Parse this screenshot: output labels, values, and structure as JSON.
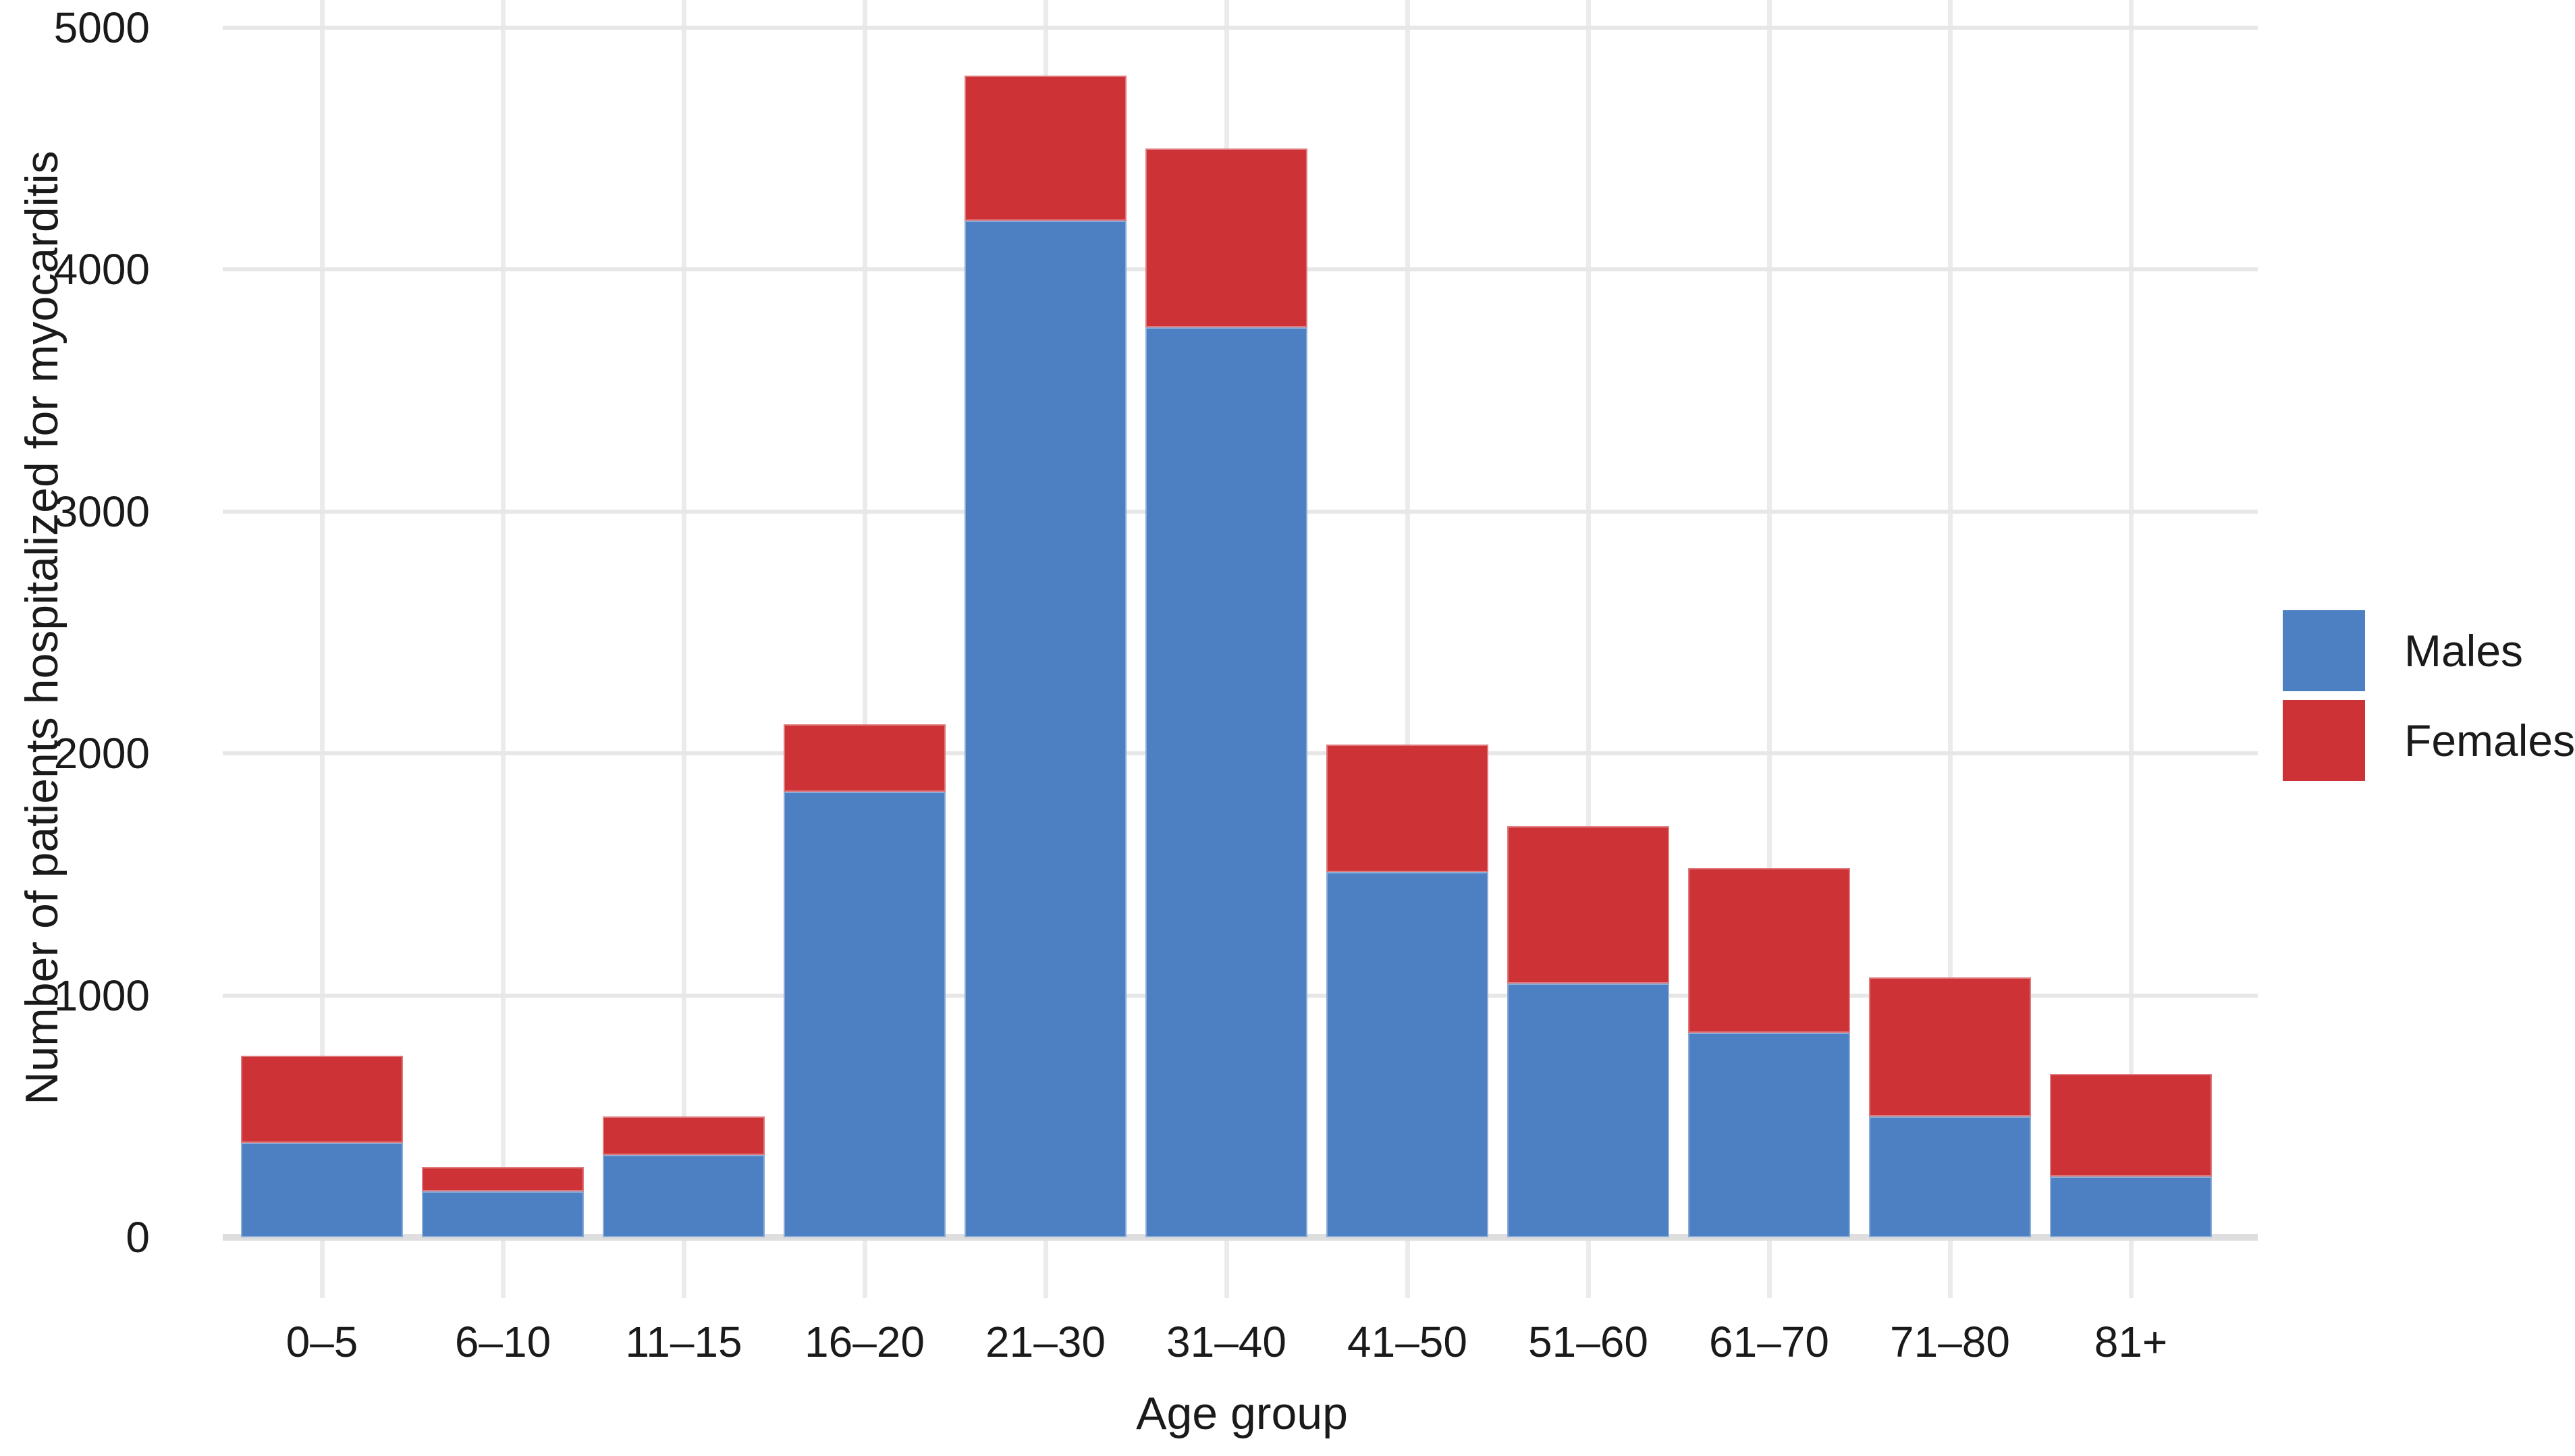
{
  "chart_data": {
    "type": "bar",
    "stacked": true,
    "categories": [
      "0–5",
      "6–10",
      "11–15",
      "16–20",
      "21–30",
      "31–40",
      "41–50",
      "51–60",
      "61–70",
      "71–80",
      "81+"
    ],
    "series": [
      {
        "name": "Males",
        "color": "#4C80C2",
        "values": [
          390,
          190,
          340,
          1840,
          4200,
          3760,
          1510,
          1050,
          845,
          500,
          250
        ]
      },
      {
        "name": "Females",
        "color": "#CC3236",
        "values": [
          360,
          100,
          160,
          280,
          600,
          740,
          525,
          650,
          680,
          575,
          425
        ]
      }
    ],
    "totals": [
      750,
      290,
      500,
      2120,
      4800,
      4500,
      2035,
      1700,
      1525,
      1075,
      675
    ],
    "xlabel": "Age group",
    "ylabel": "Number of patients hospitalized for myocarditis",
    "ylim": [
      0,
      5000
    ],
    "yticks": [
      0,
      1000,
      2000,
      3000,
      4000,
      5000
    ],
    "grid": true,
    "grid_color": "#e7e7e7",
    "legend_position": "right"
  },
  "legend": {
    "items": [
      {
        "label": "Males",
        "color": "#4C80C2"
      },
      {
        "label": "Females",
        "color": "#CC3236"
      }
    ]
  },
  "axes": {
    "x_title": "Age group",
    "y_title": "Number of patients hospitalized for myocarditis"
  }
}
